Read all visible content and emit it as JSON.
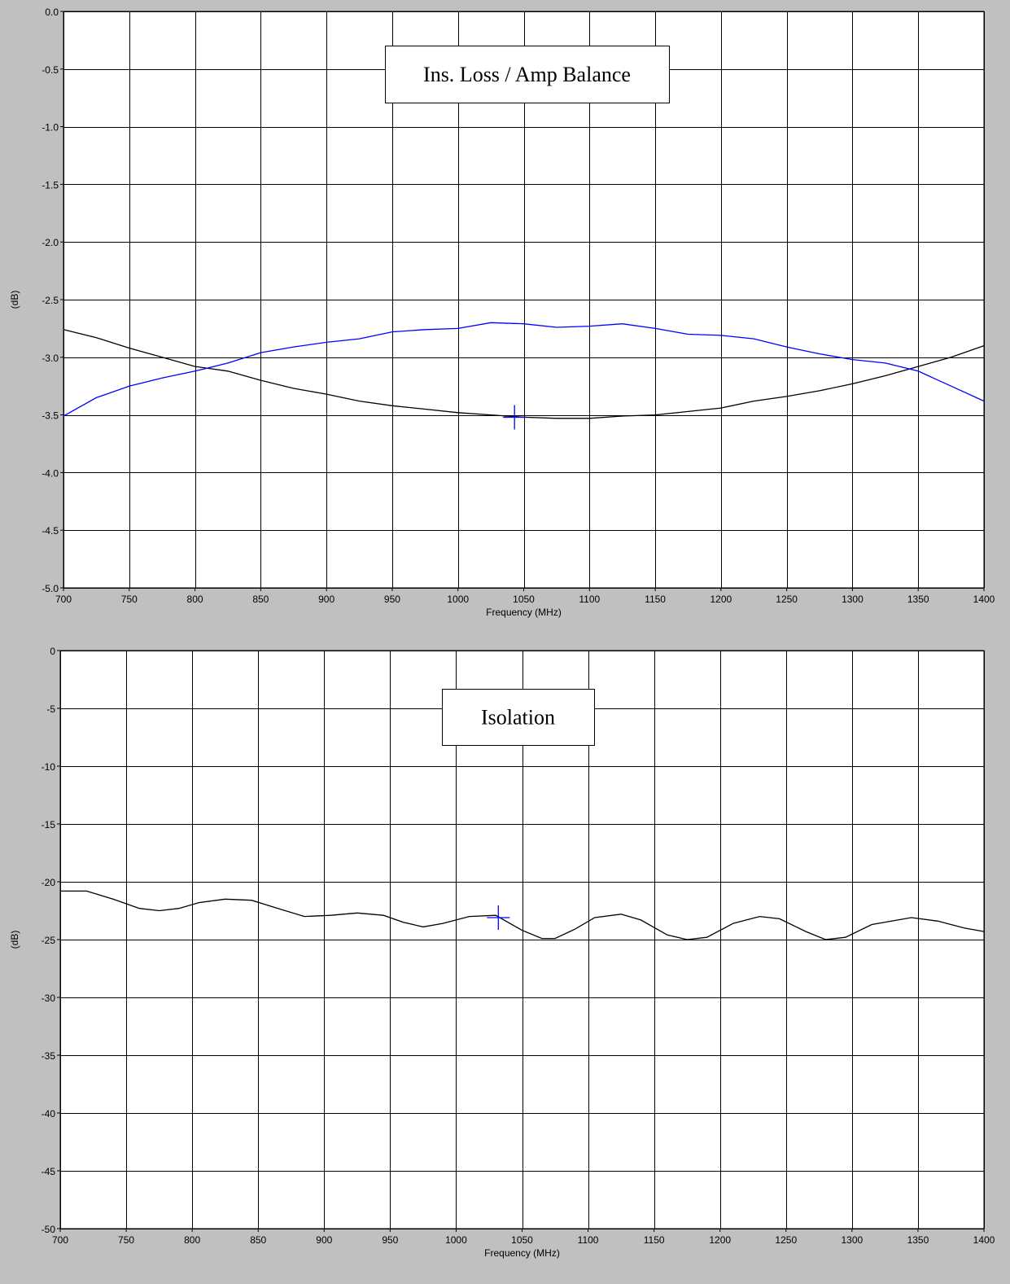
{
  "chart_data": [
    {
      "type": "line",
      "title": "Ins. Loss / Amp Balance",
      "xlabel": "Frequency (MHz)",
      "ylabel": "(dB)",
      "xlim": [
        700,
        1400
      ],
      "ylim": [
        -5.0,
        0.0
      ],
      "x_ticks": [
        "700",
        "750",
        "800",
        "850",
        "900",
        "950",
        "1000",
        "1050",
        "1100",
        "1150",
        "1200",
        "1250",
        "1300",
        "1350",
        "1400"
      ],
      "y_ticks": [
        "0.0",
        "-0.5",
        "-1.0",
        "-1.5",
        "-2.0",
        "-2.5",
        "-3.0",
        "-3.5",
        "-4.0",
        "-4.5",
        "-5.0"
      ],
      "grid": true,
      "series": [
        {
          "color": "#000000",
          "x": [
            700,
            725,
            750,
            775,
            800,
            825,
            850,
            875,
            900,
            925,
            950,
            975,
            1000,
            1025,
            1050,
            1075,
            1100,
            1125,
            1150,
            1175,
            1200,
            1225,
            1250,
            1275,
            1300,
            1325,
            1350,
            1375,
            1400
          ],
          "values": [
            -2.76,
            -2.83,
            -2.92,
            -3.0,
            -3.08,
            -3.12,
            -3.2,
            -3.27,
            -3.32,
            -3.38,
            -3.42,
            -3.45,
            -3.48,
            -3.5,
            -3.52,
            -3.53,
            -3.53,
            -3.51,
            -3.5,
            -3.47,
            -3.44,
            -3.38,
            -3.34,
            -3.29,
            -3.23,
            -3.16,
            -3.08,
            -3.0,
            -2.9
          ]
        },
        {
          "color": "#0000ff",
          "x": [
            700,
            725,
            750,
            775,
            800,
            825,
            850,
            875,
            900,
            925,
            950,
            975,
            1000,
            1025,
            1050,
            1075,
            1100,
            1125,
            1150,
            1175,
            1200,
            1225,
            1250,
            1275,
            1300,
            1325,
            1350,
            1375,
            1400
          ],
          "values": [
            -3.51,
            -3.35,
            -3.25,
            -3.18,
            -3.12,
            -3.05,
            -2.96,
            -2.91,
            -2.87,
            -2.84,
            -2.78,
            -2.76,
            -2.75,
            -2.7,
            -2.71,
            -2.74,
            -2.73,
            -2.71,
            -2.75,
            -2.8,
            -2.81,
            -2.84,
            -2.91,
            -2.97,
            -3.02,
            -3.05,
            -3.12,
            -3.25,
            -3.38
          ]
        }
      ],
      "marker": {
        "x": 1043,
        "y": -3.52,
        "color": "#0000ff"
      }
    },
    {
      "type": "line",
      "title": "Isolation",
      "xlabel": "Frequency (MHz)",
      "ylabel": "(dB)",
      "xlim": [
        700,
        1400
      ],
      "ylim": [
        -50,
        0
      ],
      "x_ticks": [
        "700",
        "750",
        "800",
        "850",
        "900",
        "950",
        "1000",
        "1050",
        "1100",
        "1150",
        "1200",
        "1250",
        "1300",
        "1350",
        "1400"
      ],
      "y_ticks": [
        "0",
        "-5",
        "-10",
        "-15",
        "-20",
        "-25",
        "-30",
        "-35",
        "-40",
        "-45",
        "-50"
      ],
      "grid": true,
      "series": [
        {
          "color": "#000000",
          "x": [
            700,
            720,
            740,
            760,
            775,
            790,
            805,
            825,
            845,
            865,
            885,
            905,
            925,
            945,
            960,
            975,
            990,
            1010,
            1030,
            1050,
            1065,
            1075,
            1090,
            1105,
            1125,
            1140,
            1160,
            1175,
            1190,
            1210,
            1230,
            1245,
            1265,
            1280,
            1295,
            1315,
            1345,
            1365,
            1385,
            1400
          ],
          "values": [
            -20.8,
            -20.8,
            -21.5,
            -22.3,
            -22.5,
            -22.3,
            -21.8,
            -21.5,
            -21.6,
            -22.3,
            -23.0,
            -22.9,
            -22.7,
            -22.9,
            -23.5,
            -23.9,
            -23.6,
            -23.0,
            -22.9,
            -24.2,
            -24.9,
            -24.9,
            -24.1,
            -23.1,
            -22.8,
            -23.3,
            -24.6,
            -25.0,
            -24.8,
            -23.6,
            -23.0,
            -23.2,
            -24.3,
            -25.0,
            -24.8,
            -23.7,
            -23.1,
            -23.4,
            -24.0,
            -24.3
          ]
        }
      ],
      "marker": {
        "x": 1032,
        "y": -23.1,
        "color": "#0000ff"
      }
    }
  ]
}
